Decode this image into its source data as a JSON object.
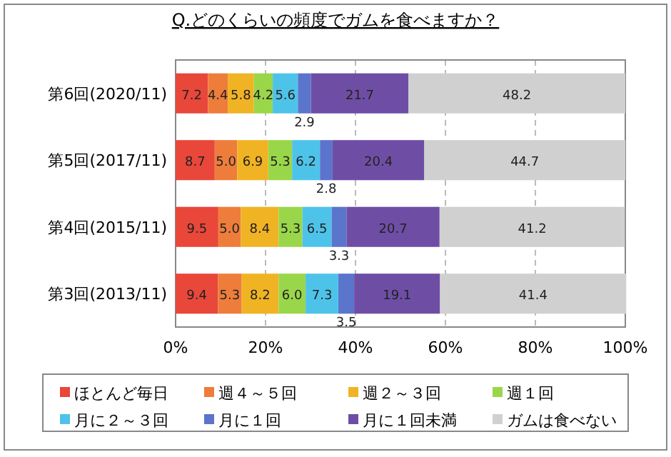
{
  "chart_data": {
    "type": "bar",
    "orientation": "horizontal",
    "stacked": true,
    "title": "Q.どのくらいの頻度でガムを食べますか？",
    "categories": [
      "第6回(2020/11)",
      "第5回(2017/11)",
      "第4回(2015/11)",
      "第3回(2013/11)"
    ],
    "series": [
      {
        "name": "ほとんど毎日",
        "color": "#e8473a",
        "values": [
          7.2,
          8.7,
          9.5,
          9.4
        ],
        "value_labels": [
          "7.2",
          "8.7",
          "9.5",
          "9.4"
        ]
      },
      {
        "name": "週４～５回",
        "color": "#ee7d3b",
        "values": [
          4.4,
          5.0,
          5.0,
          5.3
        ],
        "value_labels": [
          "4.4",
          "5.0",
          "5.0",
          "5.3"
        ]
      },
      {
        "name": "週２～３回",
        "color": "#f0b323",
        "values": [
          5.8,
          6.9,
          8.4,
          8.2
        ],
        "value_labels": [
          "5.8",
          "6.9",
          "8.4",
          "8.2"
        ]
      },
      {
        "name": "週１回",
        "color": "#9ad64a",
        "values": [
          4.2,
          5.3,
          5.3,
          6.0
        ],
        "value_labels": [
          "4.2",
          "5.3",
          "5.3",
          "6.0"
        ]
      },
      {
        "name": "月に２～３回",
        "color": "#4ec3ea",
        "values": [
          5.6,
          6.2,
          6.5,
          7.3
        ],
        "value_labels": [
          "5.6",
          "6.2",
          "6.5",
          "7.3"
        ]
      },
      {
        "name": "月に１回",
        "color": "#5b74cc",
        "values": [
          2.9,
          2.8,
          3.3,
          3.5
        ],
        "value_labels": [
          "2.9",
          "2.8",
          "3.3",
          "3.5"
        ]
      },
      {
        "name": "月に１回未満",
        "color": "#6e4ea5",
        "values": [
          21.7,
          20.4,
          20.7,
          19.1
        ],
        "value_labels": [
          "21.7",
          "20.4",
          "20.7",
          "19.1"
        ]
      },
      {
        "name": "ガムは食べない",
        "color": "#d0d0d0",
        "values": [
          48.2,
          44.7,
          41.2,
          41.4
        ],
        "value_labels": [
          "48.2",
          "44.7",
          "41.2",
          "41.4"
        ]
      }
    ],
    "xlim": [
      0,
      100
    ],
    "xticks": [
      {
        "value": 0,
        "label": "0%"
      },
      {
        "value": 20,
        "label": "20%"
      },
      {
        "value": 40,
        "label": "40%"
      },
      {
        "value": 60,
        "label": "60%"
      },
      {
        "value": 80,
        "label": "80%"
      },
      {
        "value": 100,
        "label": "100%"
      }
    ],
    "grid": "x",
    "legend": "bottom"
  }
}
